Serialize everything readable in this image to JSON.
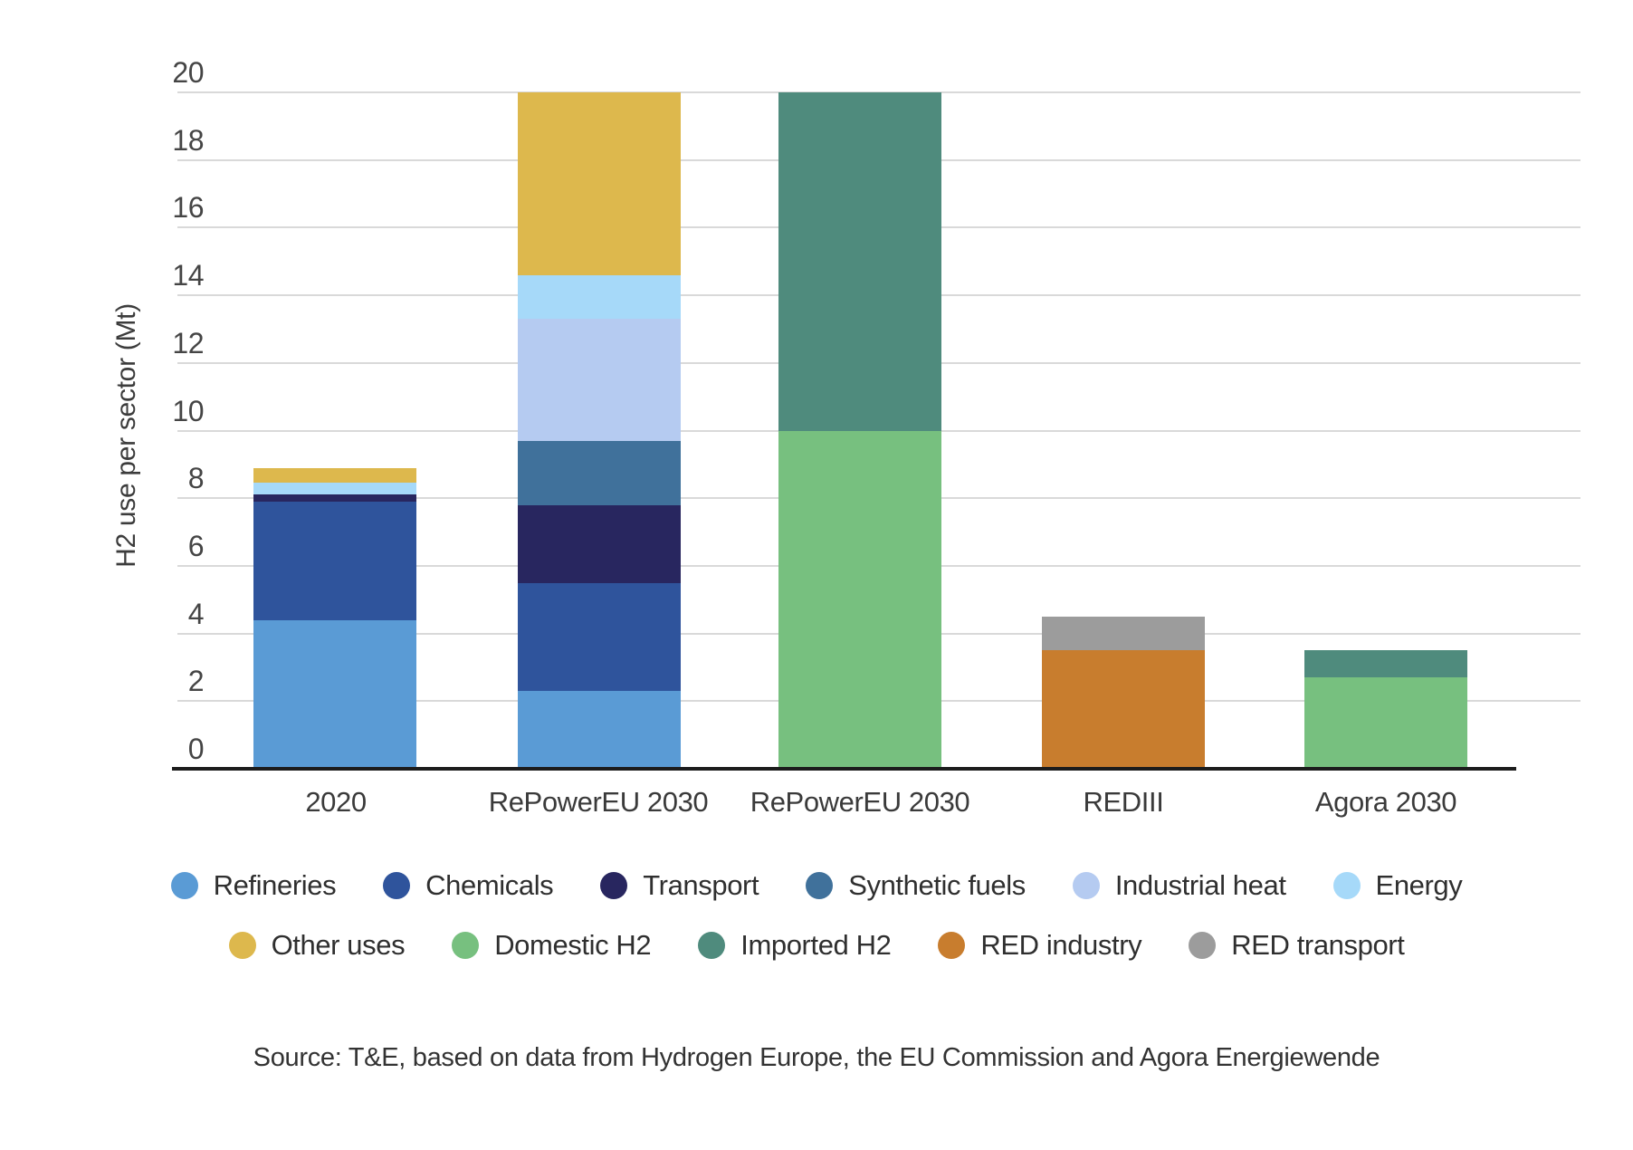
{
  "chart_data": {
    "type": "bar",
    "stacked": true,
    "ylabel": "H2 use per sector (Mt)",
    "ylim": [
      0,
      20
    ],
    "ytick_step": 2,
    "grid": true,
    "legend_position": "bottom",
    "categories": [
      "2020",
      "RePowerEU 2030",
      "RePowerEU 2030",
      "REDIII",
      "Agora 2030"
    ],
    "series": [
      {
        "name": "Refineries",
        "color": "#5a9bd5",
        "values": [
          4.4,
          2.3,
          0,
          0,
          0
        ]
      },
      {
        "name": "Chemicals",
        "color": "#2f549c",
        "values": [
          3.5,
          3.2,
          0,
          0,
          0
        ]
      },
      {
        "name": "Transport",
        "color": "#28265f",
        "values": [
          0.2,
          2.3,
          0,
          0,
          0
        ]
      },
      {
        "name": "Synthetic fuels",
        "color": "#40719b",
        "values": [
          0,
          1.9,
          0,
          0,
          0
        ]
      },
      {
        "name": "Industrial heat",
        "color": "#b5cbf1",
        "values": [
          0,
          3.6,
          0,
          0,
          0
        ]
      },
      {
        "name": "Energy",
        "color": "#a6d9f9",
        "values": [
          0.35,
          1.3,
          0,
          0,
          0
        ]
      },
      {
        "name": "Other uses",
        "color": "#ddb84d",
        "values": [
          0.45,
          5.4,
          0,
          0,
          0
        ]
      },
      {
        "name": "Domestic H2",
        "color": "#77c07f",
        "values": [
          0,
          0,
          10,
          0,
          2.7
        ]
      },
      {
        "name": "Imported H2",
        "color": "#4f8b7d",
        "values": [
          0,
          0,
          10,
          0,
          0.8
        ]
      },
      {
        "name": "RED industry",
        "color": "#c87d2e",
        "values": [
          0,
          0,
          0,
          3.5,
          0
        ]
      },
      {
        "name": "RED transport",
        "color": "#9c9c9c",
        "values": [
          0,
          0,
          0,
          1.0,
          0
        ]
      }
    ],
    "bar_totals": [
      8.9,
      20,
      20,
      4.5,
      3.5
    ],
    "legend_rows": [
      [
        "Refineries",
        "Chemicals",
        "Transport",
        "Synthetic fuels",
        "Industrial heat",
        "Energy"
      ],
      [
        "Other uses",
        "Domestic H2",
        "Imported H2",
        "RED industry",
        "RED transport"
      ]
    ],
    "source": "Source: T&E, based on data from Hydrogen Europe, the EU Commission and Agora Energiewende",
    "colors": {
      "grid_line": "#d9d9d9",
      "axis_line": "#1c1c1c",
      "text": "#3c3c3c"
    }
  }
}
